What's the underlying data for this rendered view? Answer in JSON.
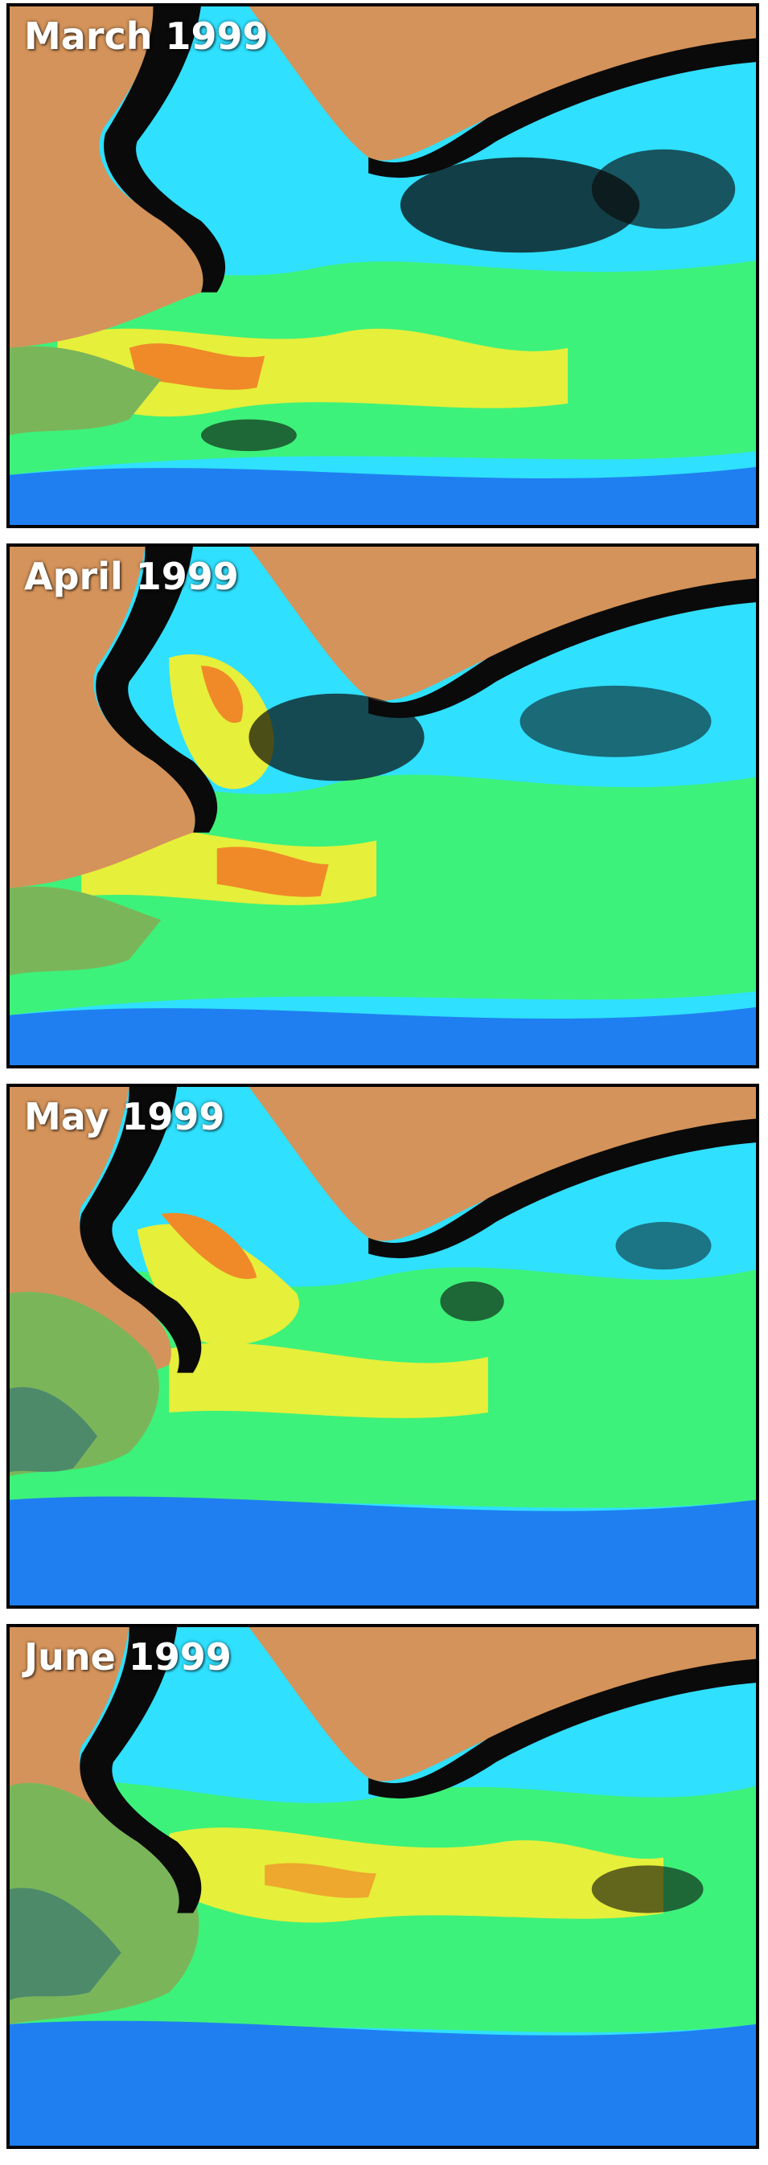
{
  "panels": [
    {
      "label": "March 1999"
    },
    {
      "label": "April 1999"
    },
    {
      "label": "May 1999"
    },
    {
      "label": "June 1999"
    }
  ],
  "colors": {
    "land": "#d4935a",
    "coast": "#0a0a0a",
    "ocean_cyan": "#2fe0ff",
    "ocean_green": "#3df27a",
    "ocean_yellow": "#e6ef3a",
    "ocean_orange": "#f08a28",
    "ocean_blue": "#1f7ff0",
    "land_green": "#7bb55a"
  }
}
